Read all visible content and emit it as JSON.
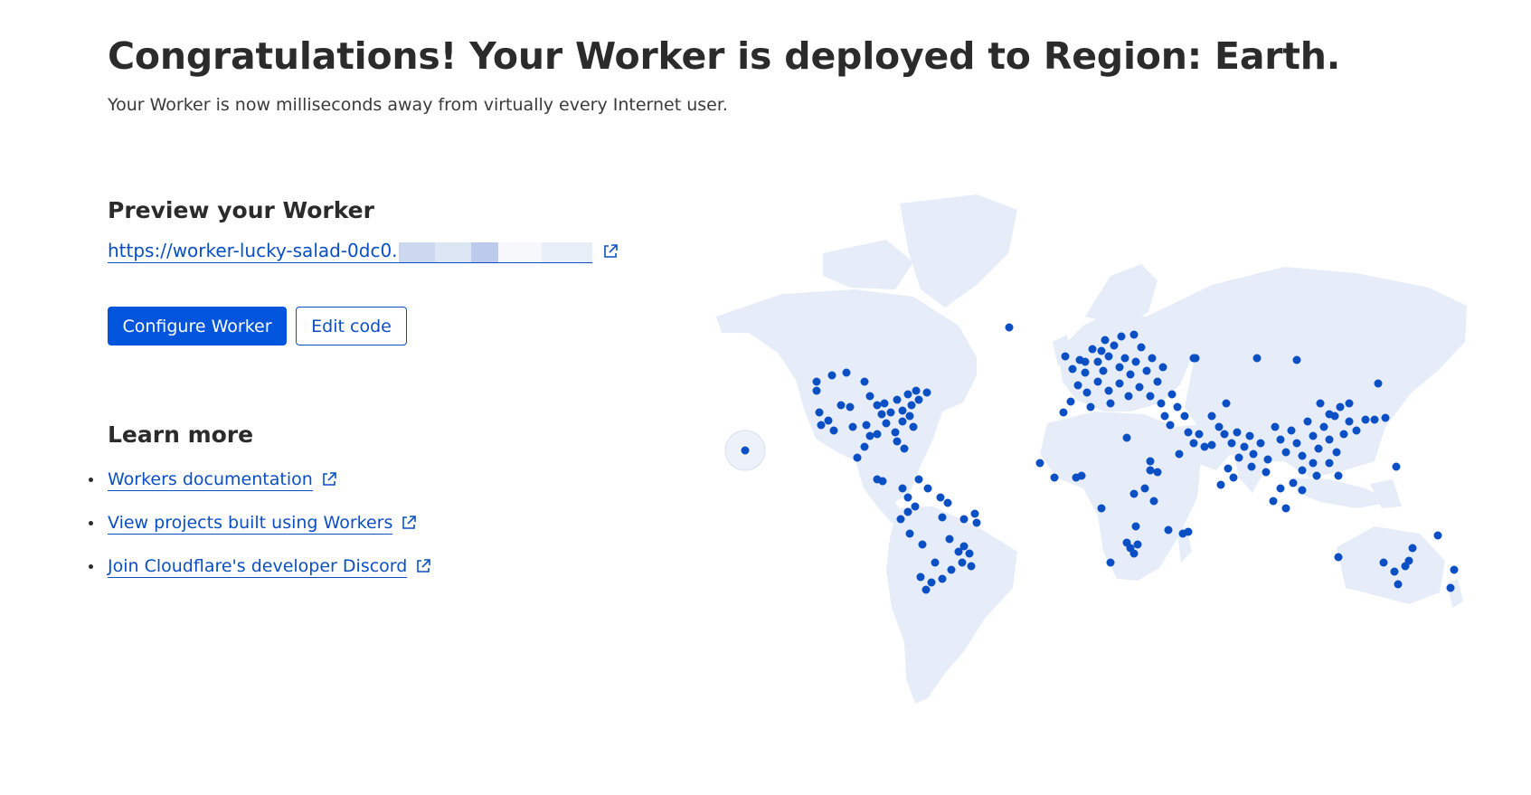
{
  "header": {
    "title": "Congratulations! Your Worker is deployed to Region: Earth.",
    "subtitle": "Your Worker is now milliseconds away from virtually every Internet user."
  },
  "preview": {
    "title": "Preview your Worker",
    "url_text": "https://worker-lucky-salad-0dc0.",
    "url_icon": "external-link-icon"
  },
  "actions": {
    "configure_label": "Configure Worker",
    "edit_label": "Edit code"
  },
  "learn_more": {
    "title": "Learn more",
    "links": [
      {
        "label": "Workers documentation",
        "icon": "external-link-icon"
      },
      {
        "label": "View projects built using Workers",
        "icon": "external-link-icon"
      },
      {
        "label": "Join Cloudflare's developer Discord",
        "icon": "external-link-icon"
      }
    ]
  },
  "map": {
    "land_color": "#e6edf8",
    "dot_color": "#0a4fc4",
    "icon": "world-map-icon"
  }
}
